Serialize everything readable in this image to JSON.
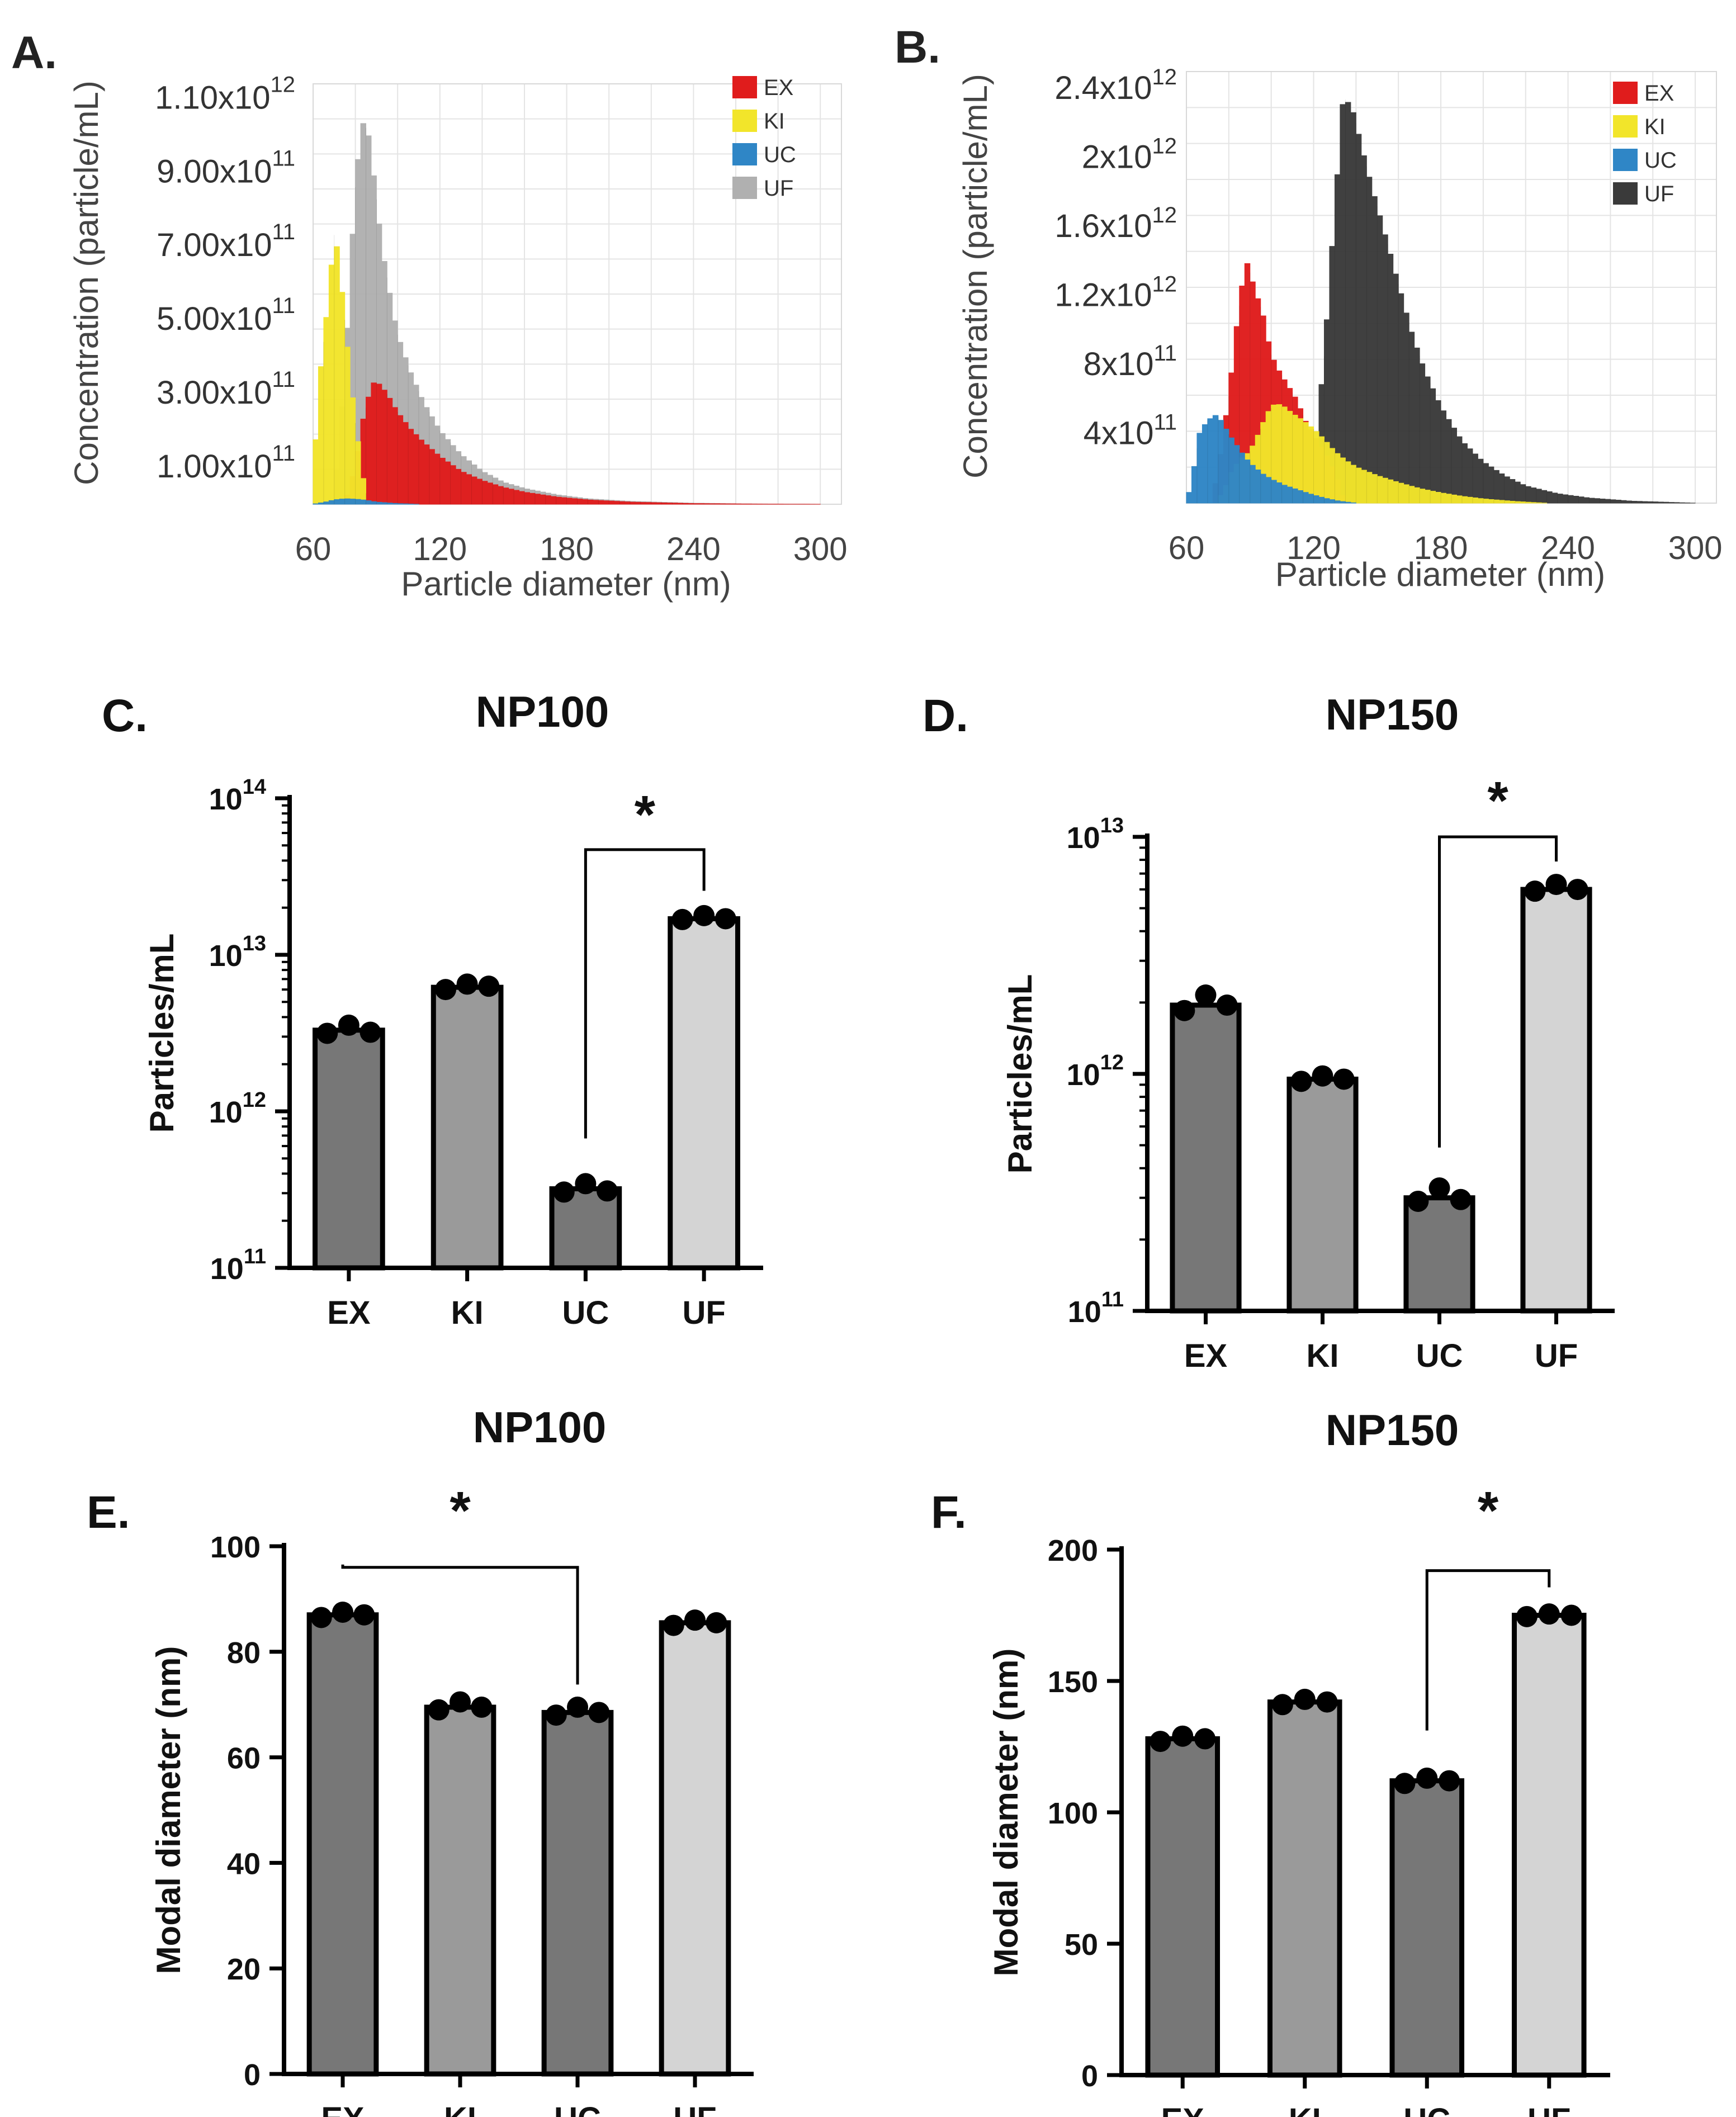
{
  "figure": {
    "colors": {
      "EX": "#e01c1c",
      "KI": "#f2e52a",
      "UC": "#2f86c6",
      "UF": "#b0b0b0",
      "UF_dark": "#3a3a3a",
      "bar_dark": "#777777",
      "bar_mid": "#9a9a9a",
      "bar_light": "#d4d4d4"
    }
  },
  "chart_data": [
    {
      "panel": "A.",
      "type": "area",
      "title": "",
      "xlabel": "Particle diameter (nm)",
      "ylabel": "Concentration (particle/mL)",
      "xlim": [
        60,
        310
      ],
      "ylim": [
        0,
        1140000000000.0
      ],
      "xticks": [
        "60",
        "120",
        "180",
        "240",
        "300"
      ],
      "yticks": [
        {
          "value": 100000000000.0,
          "mant": "1.00x10",
          "exp": "11"
        },
        {
          "value": 300000000000.0,
          "mant": "3.00x10",
          "exp": "11"
        },
        {
          "value": 500000000000.0,
          "mant": "5.00x10",
          "exp": "11"
        },
        {
          "value": 700000000000.0,
          "mant": "7.00x10",
          "exp": "11"
        },
        {
          "value": 900000000000.0,
          "mant": "9.00x10",
          "exp": "11"
        },
        {
          "value": 1100000000000.0,
          "mant": "1.10x10",
          "exp": "12"
        }
      ],
      "legend": [
        "EX",
        "KI",
        "UC",
        "UF"
      ],
      "legend_position": "top-right",
      "grid": true,
      "series": [
        {
          "name": "UF",
          "x": [
            60,
            70,
            75,
            80,
            83,
            86,
            89,
            92,
            96,
            100,
            106,
            112,
            120,
            130,
            140,
            150,
            160,
            175,
            190,
            210,
            240,
            270,
            300
          ],
          "y": [
            0,
            8000000000.0,
            350000000000.0,
            860000000000.0,
            1040000000000.0,
            1010000000000.0,
            880000000000.0,
            720000000000.0,
            580000000000.0,
            460000000000.0,
            360000000000.0,
            280000000000.0,
            200000000000.0,
            135000000000.0,
            90000000000.0,
            60000000000.0,
            43000000000.0,
            26000000000.0,
            15000000000.0,
            8000000000.0,
            3000000000.0,
            1000000000.0,
            0
          ]
        },
        {
          "name": "EX",
          "x": [
            60,
            75,
            80,
            84,
            88,
            92,
            96,
            100,
            106,
            112,
            120,
            130,
            140,
            150,
            160,
            175,
            190,
            210,
            240,
            270,
            300
          ],
          "y": [
            0,
            0,
            100000000000.0,
            240000000000.0,
            330000000000.0,
            325000000000.0,
            290000000000.0,
            250000000000.0,
            205000000000.0,
            170000000000.0,
            130000000000.0,
            90000000000.0,
            65000000000.0,
            46000000000.0,
            33000000000.0,
            20000000000.0,
            12000000000.0,
            6000000000.0,
            2000000000.0,
            500000000.0,
            0
          ]
        },
        {
          "name": "KI",
          "x": [
            60,
            62,
            65,
            68,
            70,
            72,
            74,
            76,
            78,
            80,
            82,
            84,
            86
          ],
          "y": [
            0,
            280000000000.0,
            440000000000.0,
            600000000000.0,
            730000000000.0,
            680000000000.0,
            560000000000.0,
            440000000000.0,
            330000000000.0,
            220000000000.0,
            140000000000.0,
            60000000000.0,
            0
          ]
        },
        {
          "name": "UC",
          "x": [
            60,
            66,
            70,
            75,
            80,
            85,
            90,
            100,
            110
          ],
          "y": [
            0,
            6000000000.0,
            12000000000.0,
            15000000000.0,
            14000000000.0,
            11000000000.0,
            6000000000.0,
            2000000000.0,
            0
          ]
        }
      ]
    },
    {
      "panel": "B.",
      "type": "area",
      "title": "",
      "xlabel": "Particle diameter (nm)",
      "ylabel": "Concentration (particle/mL)",
      "xlim": [
        60,
        310
      ],
      "ylim": [
        0,
        2500000000000.0
      ],
      "xticks": [
        "60",
        "120",
        "180",
        "240",
        "300"
      ],
      "yticks": [
        {
          "value": 400000000000.0,
          "mant": "4x10",
          "exp": "11"
        },
        {
          "value": 800000000000.0,
          "mant": "8x10",
          "exp": "11"
        },
        {
          "value": 1200000000000.0,
          "mant": "1.2x10",
          "exp": "12"
        },
        {
          "value": 1600000000000.0,
          "mant": "1.6x10",
          "exp": "12"
        },
        {
          "value": 2000000000000.0,
          "mant": "2x10",
          "exp": "12"
        },
        {
          "value": 2400000000000.0,
          "mant": "2.4x10",
          "exp": "12"
        }
      ],
      "legend": [
        "EX",
        "KI",
        "UC",
        "UF"
      ],
      "legend_position": "top-right",
      "grid": true,
      "series": [
        {
          "name": "UF",
          "x": [
            60,
            115,
            120,
            125,
            130,
            134,
            138,
            142,
            146,
            150,
            155,
            160,
            166,
            172,
            180,
            190,
            200,
            210,
            220,
            235,
            250,
            270,
            290,
            300
          ],
          "y": [
            0,
            0,
            200000000000.0,
            850000000000.0,
            1700000000000.0,
            2350000000000.0,
            2300000000000.0,
            2100000000000.0,
            1900000000000.0,
            1720000000000.0,
            1500000000000.0,
            1270000000000.0,
            1000000000000.0,
            780000000000.0,
            560000000000.0,
            360000000000.0,
            240000000000.0,
            160000000000.0,
            100000000000.0,
            55000000000.0,
            30000000000.0,
            12000000000.0,
            4000000000.0,
            0
          ]
        },
        {
          "name": "EX",
          "x": [
            60,
            72,
            76,
            80,
            84,
            88,
            92,
            96,
            100,
            104,
            108,
            112,
            116,
            120,
            126,
            130,
            135
          ],
          "y": [
            0,
            0,
            260000000000.0,
            620000000000.0,
            1050000000000.0,
            1420000000000.0,
            1250000000000.0,
            1100000000000.0,
            860000000000.0,
            760000000000.0,
            680000000000.0,
            600000000000.0,
            480000000000.0,
            400000000000.0,
            280000000000.0,
            180000000000.0,
            0
          ]
        },
        {
          "name": "KI",
          "x": [
            60,
            74,
            78,
            82,
            86,
            90,
            94,
            98,
            102,
            106,
            110,
            115,
            120,
            125,
            130,
            135,
            140,
            150,
            160,
            170,
            180,
            190,
            200,
            215,
            230
          ],
          "y": [
            0,
            0,
            80000000000.0,
            200000000000.0,
            260000000000.0,
            300000000000.0,
            400000000000.0,
            520000000000.0,
            580000000000.0,
            560000000000.0,
            520000000000.0,
            480000000000.0,
            430000000000.0,
            370000000000.0,
            300000000000.0,
            250000000000.0,
            210000000000.0,
            160000000000.0,
            120000000000.0,
            85000000000.0,
            60000000000.0,
            40000000000.0,
            25000000000.0,
            10000000000.0,
            0
          ]
        },
        {
          "name": "UC",
          "x": [
            60,
            63,
            66,
            70,
            74,
            77,
            80,
            84,
            88,
            92,
            96,
            100,
            106,
            112,
            118,
            125,
            132,
            140
          ],
          "y": [
            0,
            150000000000.0,
            400000000000.0,
            480000000000.0,
            510000000000.0,
            470000000000.0,
            400000000000.0,
            330000000000.0,
            260000000000.0,
            210000000000.0,
            170000000000.0,
            140000000000.0,
            105000000000.0,
            80000000000.0,
            55000000000.0,
            30000000000.0,
            12000000000.0,
            0
          ]
        }
      ]
    },
    {
      "panel": "C.",
      "type": "bar",
      "title": "NP100",
      "ylabel": "Particles/mL",
      "xlabel": "",
      "scale": "log",
      "ylim": [
        100000000000.0,
        100000000000000.0
      ],
      "yticks": [
        {
          "value": 100000000000.0,
          "mant": "10",
          "exp": "11"
        },
        {
          "value": 1000000000000.0,
          "mant": "10",
          "exp": "12"
        },
        {
          "value": 10000000000000.0,
          "mant": "10",
          "exp": "13"
        },
        {
          "value": 100000000000000.0,
          "mant": "10",
          "exp": "14"
        }
      ],
      "categories": [
        "EX",
        "KI",
        "UC",
        "UF"
      ],
      "values": [
        3300000000000.0,
        6200000000000.0,
        320000000000.0,
        17000000000000.0
      ],
      "points": [
        [
          3150000000000.0,
          3550000000000.0,
          3200000000000.0
        ],
        [
          6000000000000.0,
          6500000000000.0,
          6300000000000.0
        ],
        [
          305000000000.0,
          345000000000.0,
          310000000000.0
        ],
        [
          16800000000000.0,
          17800000000000.0,
          17000000000000.0
        ]
      ],
      "significance": {
        "from": "UC",
        "to": "UF",
        "label": "*",
        "level": 47000000000000.0
      }
    },
    {
      "panel": "D.",
      "type": "bar",
      "title": "NP150",
      "ylabel": "Particles/mL",
      "xlabel": "",
      "scale": "log",
      "ylim": [
        100000000000.0,
        10000000000000.0
      ],
      "yticks": [
        {
          "value": 100000000000.0,
          "mant": "10",
          "exp": "11"
        },
        {
          "value": 1000000000000.0,
          "mant": "10",
          "exp": "12"
        },
        {
          "value": 10000000000000.0,
          "mant": "10",
          "exp": "13"
        }
      ],
      "categories": [
        "EX",
        "KI",
        "UC",
        "UF"
      ],
      "values": [
        1950000000000.0,
        950000000000.0,
        300000000000.0,
        6000000000000.0
      ],
      "points": [
        [
          1850000000000.0,
          2150000000000.0,
          1950000000000.0
        ],
        [
          930000000000.0,
          980000000000.0,
          950000000000.0
        ],
        [
          290000000000.0,
          330000000000.0,
          295000000000.0
        ],
        [
          5900000000000.0,
          6300000000000.0,
          6000000000000.0
        ]
      ],
      "significance": {
        "from": "UC",
        "to": "UF",
        "label": "*",
        "level": 10000000000000.0
      }
    },
    {
      "panel": "E.",
      "type": "bar",
      "title": "NP100",
      "ylabel": "Modal diameter (nm)",
      "xlabel": "",
      "scale": "linear",
      "ylim": [
        0,
        100
      ],
      "yticks": [
        {
          "value": 0,
          "mant": "0",
          "exp": ""
        },
        {
          "value": 20,
          "mant": "20",
          "exp": ""
        },
        {
          "value": 40,
          "mant": "40",
          "exp": ""
        },
        {
          "value": 60,
          "mant": "60",
          "exp": ""
        },
        {
          "value": 80,
          "mant": "80",
          "exp": ""
        },
        {
          "value": 100,
          "mant": "100",
          "exp": ""
        }
      ],
      "categories": [
        "EX",
        "KI",
        "UC",
        "UF"
      ],
      "values": [
        87,
        69.5,
        68.5,
        85.5
      ],
      "points": [
        [
          86.5,
          87.5,
          87
        ],
        [
          69,
          70.5,
          69.5
        ],
        [
          68,
          69.5,
          68.5
        ],
        [
          85,
          86,
          85.5
        ]
      ],
      "significance": {
        "from": "EX",
        "to": "UC",
        "label": "*",
        "level": 96
      }
    },
    {
      "panel": "F.",
      "type": "bar",
      "title": "NP150",
      "ylabel": "Modal diameter (nm)",
      "xlabel": "",
      "scale": "linear",
      "ylim": [
        0,
        200
      ],
      "yticks": [
        {
          "value": 0,
          "mant": "0",
          "exp": ""
        },
        {
          "value": 50,
          "mant": "50",
          "exp": ""
        },
        {
          "value": 100,
          "mant": "100",
          "exp": ""
        },
        {
          "value": 150,
          "mant": "150",
          "exp": ""
        },
        {
          "value": 200,
          "mant": "200",
          "exp": ""
        }
      ],
      "categories": [
        "EX",
        "KI",
        "UC",
        "UF"
      ],
      "values": [
        128,
        142,
        112,
        175
      ],
      "points": [
        [
          127,
          129,
          128
        ],
        [
          141,
          143,
          142
        ],
        [
          111,
          113,
          112
        ],
        [
          174.5,
          175.5,
          175
        ]
      ],
      "significance": {
        "from": "UC",
        "to": "UF",
        "label": "*",
        "level": 192
      }
    }
  ]
}
